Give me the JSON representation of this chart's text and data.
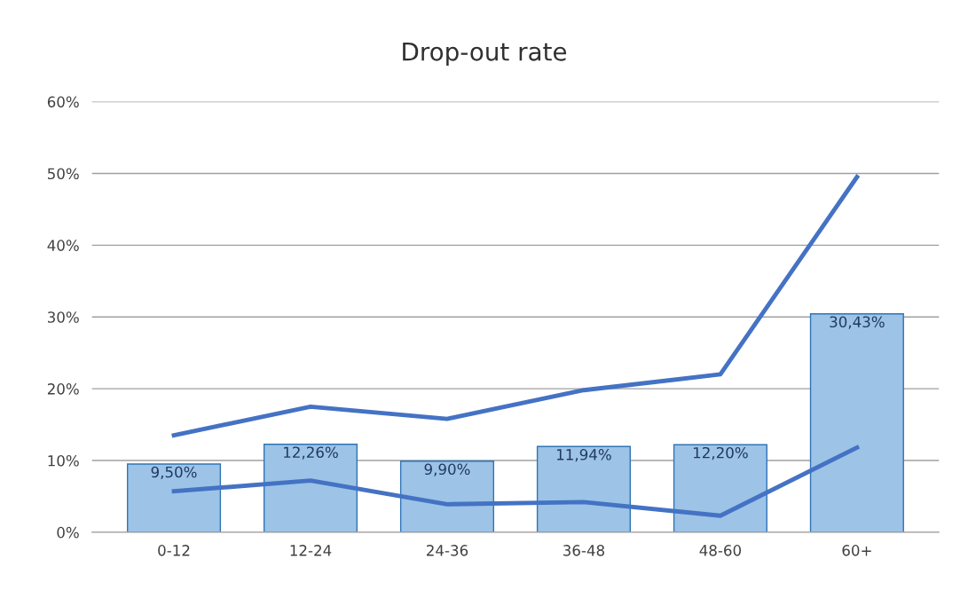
{
  "chart_data": {
    "type": "bar",
    "title": "Drop-out rate",
    "categories": [
      "0-12",
      "12-24",
      "24-36",
      "36-48",
      "48-60",
      "60+"
    ],
    "series": [
      {
        "color": "#9dc3e6",
        "values": [
          9.5,
          12.26,
          9.9,
          11.94,
          12.2,
          30.43
        ],
        "value_labels": [
          "9,50%",
          "12,26%",
          "9,90%",
          "11,94%",
          "12,20%",
          "30,43%"
        ]
      },
      {
        "type": "line",
        "color": "#4472c4",
        "values": [
          13.5,
          17.5,
          15.8,
          19.8,
          22.0,
          49.5
        ]
      },
      {
        "type": "line",
        "color": "#4472c4",
        "values": [
          5.7,
          7.2,
          3.9,
          4.2,
          2.3,
          11.8
        ]
      }
    ],
    "ylim": [
      0,
      60
    ],
    "yticks": [
      {
        "value": 0,
        "label": "0%"
      },
      {
        "value": 10,
        "label": "10%"
      },
      {
        "value": 20,
        "label": "20%"
      },
      {
        "value": 30,
        "label": "30%"
      },
      {
        "value": 40,
        "label": "40%"
      },
      {
        "value": 50,
        "label": "50%"
      },
      {
        "value": 60,
        "label": "60%"
      }
    ],
    "grid": "y",
    "legend": false,
    "marker": "none",
    "line_style": "solid"
  }
}
